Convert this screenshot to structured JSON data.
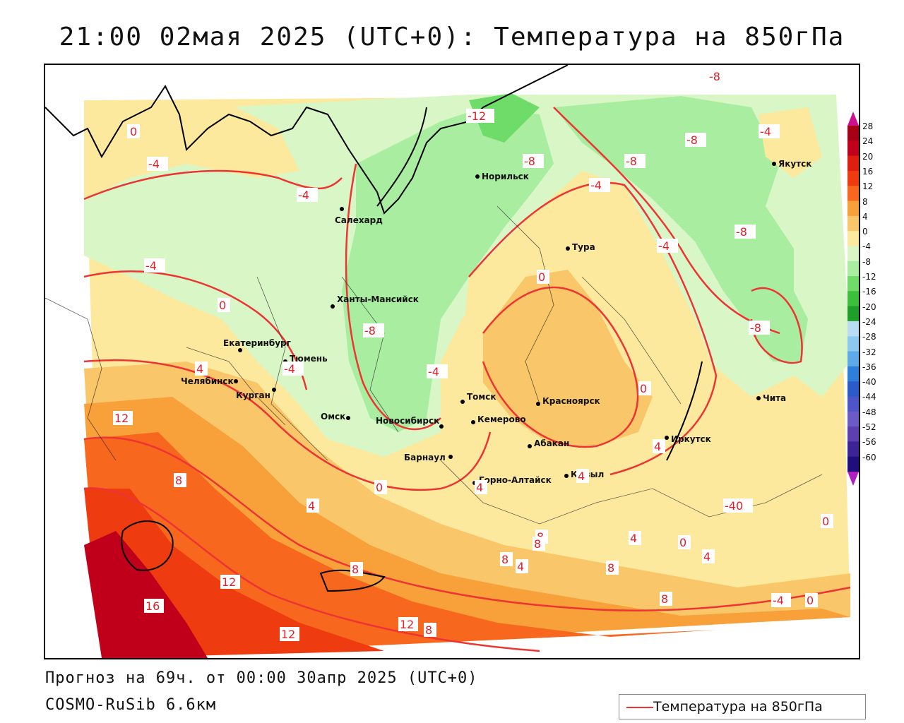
{
  "title": "21:00 02мая 2025 (UTC+0): Температура на 850гПа",
  "forecast_line": "Прогноз на 69ч. от 00:00 30апр 2025 (UTC+0)",
  "model_line": "COSMO-RuSib 6.6км",
  "legend": {
    "label": "Температура на 850гПа",
    "line_color": "#ee3333"
  },
  "colorbar": {
    "labels": [
      "28",
      "24",
      "20",
      "16",
      "12",
      "8",
      "4",
      "0",
      "-4",
      "-8",
      "-12",
      "-16",
      "-20",
      "-24",
      "-28",
      "-32",
      "-36",
      "-40",
      "-44",
      "-48",
      "-52",
      "-56",
      "-60"
    ],
    "colors": [
      "#a50016",
      "#c0001a",
      "#de1f10",
      "#ee3b10",
      "#f7671e",
      "#f8a03a",
      "#fac66a",
      "#fde99e",
      "#d9f7c6",
      "#a9eda0",
      "#6fdc6a",
      "#3cbf3a",
      "#1f9e2a",
      "#b9dcf4",
      "#8cc8f0",
      "#5ea9e8",
      "#2e7fd9",
      "#2b5bc8",
      "#4d55c8",
      "#6c5ac6",
      "#5d3fb0",
      "#3c2496",
      "#1f0f7c"
    ],
    "top_arrow_color": "#d01090",
    "bottom_arrow_color": "#b020c0"
  },
  "cities": [
    {
      "name": "Норильск"
    },
    {
      "name": "Якутск"
    },
    {
      "name": "Салехард"
    },
    {
      "name": "Тура"
    },
    {
      "name": "Ханты-Мансийск"
    },
    {
      "name": "Екатеринбург"
    },
    {
      "name": "Тюмень"
    },
    {
      "name": "Челябинск"
    },
    {
      "name": "Курган"
    },
    {
      "name": "Омск"
    },
    {
      "name": "Новосибирск"
    },
    {
      "name": "Томск"
    },
    {
      "name": "Кемерово"
    },
    {
      "name": "Красноярск"
    },
    {
      "name": "Абакан"
    },
    {
      "name": "Барнаул"
    },
    {
      "name": "Горно-Алтайск"
    },
    {
      "name": "Кызыл"
    },
    {
      "name": "Иркутск"
    },
    {
      "name": "Чита"
    }
  ],
  "isotherm_labels": [
    "0",
    "-4",
    "-4",
    "-12",
    "-8",
    "-8",
    "-4",
    "-8",
    "-4",
    "-4",
    "-8",
    "-4",
    "0",
    "-8",
    "-4",
    "0",
    "-4",
    "-8",
    "-8",
    "4",
    "12",
    "8",
    "4",
    "0",
    "0",
    "4",
    "4",
    "-40",
    "0",
    "8",
    "4",
    "0",
    "4",
    "8",
    "12",
    "16",
    "8",
    "8",
    "4",
    "8",
    "-4",
    "0",
    "12",
    "12",
    "8",
    "8",
    "4"
  ]
}
